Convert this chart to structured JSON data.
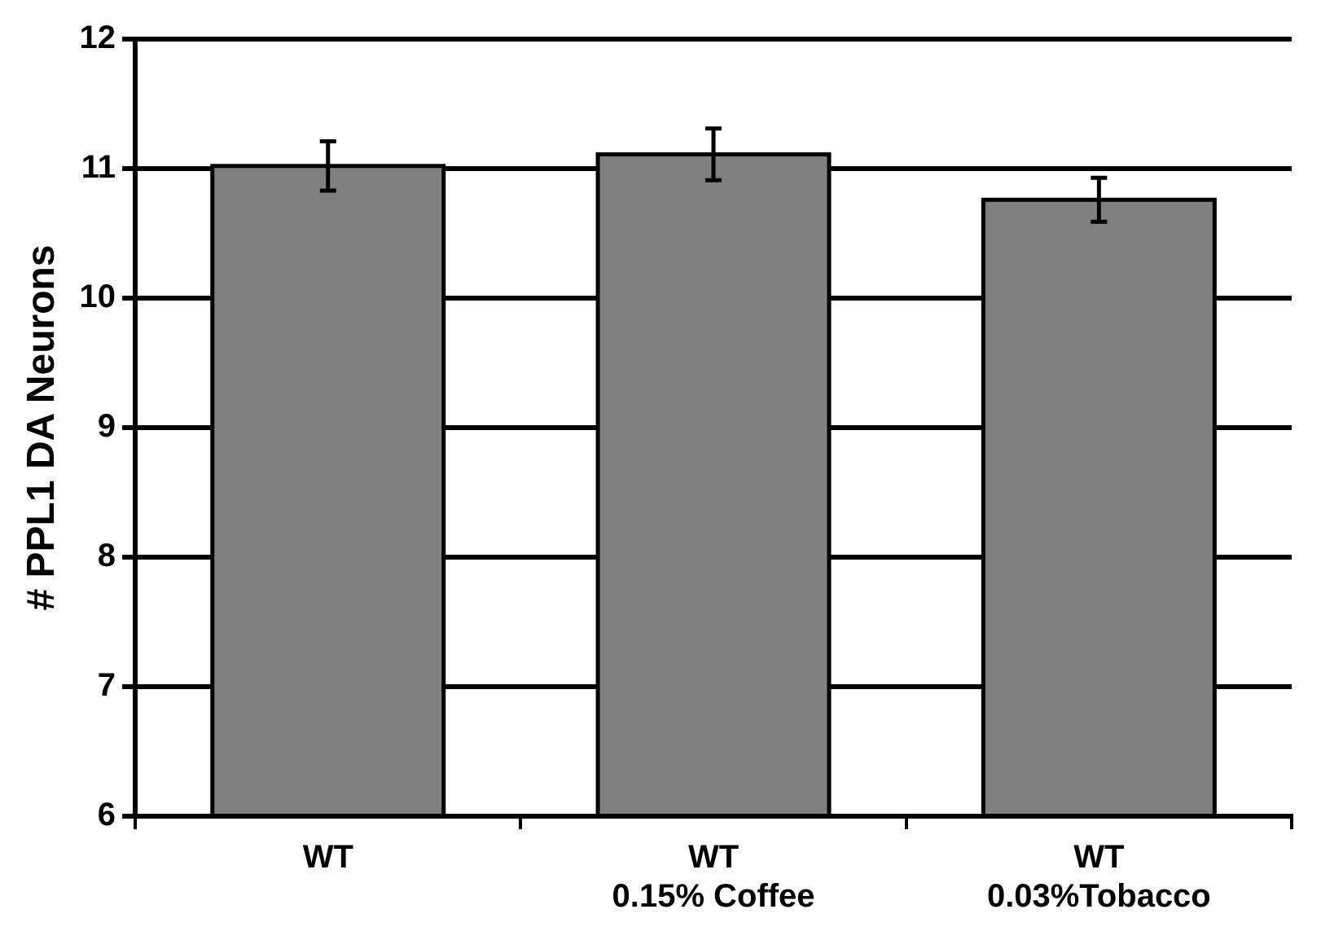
{
  "chart_data": {
    "type": "bar",
    "ylabel": "# PPL1 DA Neurons",
    "categories": [
      "WT",
      "WT\n0.15% Coffee",
      "WT\n0.03%Tobacco"
    ],
    "values": [
      11.02,
      11.11,
      10.76
    ],
    "errors": [
      0.19,
      0.2,
      0.17
    ],
    "color": "#808080",
    "ylim": [
      6,
      12
    ],
    "yticks": [
      6,
      7,
      8,
      9,
      10,
      11,
      12
    ],
    "grid": "y",
    "legend": false
  }
}
